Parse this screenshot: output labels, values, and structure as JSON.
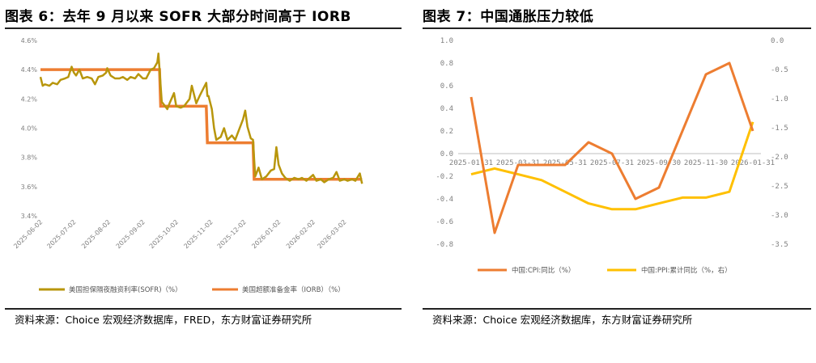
{
  "charts": [
    {
      "figure_title": "图表 6：去年 9 月以来 SOFR 大部分时间高于 IORB",
      "source_note": "资料来源：Choice 宏观经济数据库，FRED，东方财富证券研究所",
      "colors": {
        "sofr": "#B8960C",
        "iorb": "#ED7D31"
      }
    },
    {
      "figure_title": "图表 7：中国通胀压力较低",
      "source_note": "资料来源：Choice 宏观经济数据库，东方财富证券研究所",
      "colors": {
        "cpi": "#ED7D31",
        "ppi": "#FFC000"
      }
    }
  ],
  "chart_data": [
    {
      "type": "line",
      "title": "图表 6：去年 9 月以来 SOFR 大部分时间高于 IORB",
      "ylim": [
        3.4,
        4.6
      ],
      "ytick_labels": [
        "4.6%",
        "4.4%",
        "4.2%",
        "4.0%",
        "3.8%",
        "3.6%",
        "3.4%"
      ],
      "xtick_labels": [
        "2025-06-02",
        "2025-07-02",
        "2025-08-02",
        "2025-09-02",
        "2025-10-02",
        "2025-11-02",
        "2025-12-02",
        "2026-01-02",
        "2026-02-02",
        "2026-03-02"
      ],
      "grid": false,
      "legend": "bottom",
      "series": [
        {
          "name": "美国担保隔夜融资利率(SOFR)（%）",
          "points": [
            [
              "2025-06-02",
              4.35
            ],
            [
              "2025-06-04",
              4.29
            ],
            [
              "2025-06-06",
              4.3
            ],
            [
              "2025-06-10",
              4.29
            ],
            [
              "2025-06-13",
              4.31
            ],
            [
              "2025-06-17",
              4.3
            ],
            [
              "2025-06-20",
              4.33
            ],
            [
              "2025-06-24",
              4.34
            ],
            [
              "2025-06-27",
              4.35
            ],
            [
              "2025-06-30",
              4.42
            ],
            [
              "2025-07-02",
              4.38
            ],
            [
              "2025-07-04",
              4.36
            ],
            [
              "2025-07-07",
              4.4
            ],
            [
              "2025-07-10",
              4.34
            ],
            [
              "2025-07-14",
              4.35
            ],
            [
              "2025-07-18",
              4.34
            ],
            [
              "2025-07-21",
              4.3
            ],
            [
              "2025-07-24",
              4.35
            ],
            [
              "2025-07-28",
              4.36
            ],
            [
              "2025-07-31",
              4.38
            ],
            [
              "2025-08-01",
              4.41
            ],
            [
              "2025-08-04",
              4.36
            ],
            [
              "2025-08-08",
              4.34
            ],
            [
              "2025-08-12",
              4.34
            ],
            [
              "2025-08-15",
              4.35
            ],
            [
              "2025-08-19",
              4.33
            ],
            [
              "2025-08-22",
              4.35
            ],
            [
              "2025-08-26",
              4.34
            ],
            [
              "2025-08-29",
              4.37
            ],
            [
              "2025-09-02",
              4.34
            ],
            [
              "2025-09-05",
              4.34
            ],
            [
              "2025-09-09",
              4.4
            ],
            [
              "2025-09-12",
              4.41
            ],
            [
              "2025-09-15",
              4.45
            ],
            [
              "2025-09-16",
              4.51
            ],
            [
              "2025-09-17",
              4.4
            ],
            [
              "2025-09-19",
              4.18
            ],
            [
              "2025-09-22",
              4.15
            ],
            [
              "2025-09-24",
              4.13
            ],
            [
              "2025-09-26",
              4.17
            ],
            [
              "2025-09-30",
              4.24
            ],
            [
              "2025-10-02",
              4.15
            ],
            [
              "2025-10-06",
              4.14
            ],
            [
              "2025-10-09",
              4.15
            ],
            [
              "2025-10-14",
              4.2
            ],
            [
              "2025-10-16",
              4.29
            ],
            [
              "2025-10-20",
              4.17
            ],
            [
              "2025-10-23",
              4.22
            ],
            [
              "2025-10-27",
              4.28
            ],
            [
              "2025-10-29",
              4.31
            ],
            [
              "2025-10-30",
              4.22
            ],
            [
              "2025-10-31",
              4.22
            ],
            [
              "2025-11-03",
              4.13
            ],
            [
              "2025-11-05",
              4.0
            ],
            [
              "2025-11-07",
              3.92
            ],
            [
              "2025-11-11",
              3.94
            ],
            [
              "2025-11-14",
              4.0
            ],
            [
              "2025-11-17",
              3.92
            ],
            [
              "2025-11-21",
              3.95
            ],
            [
              "2025-11-24",
              3.92
            ],
            [
              "2025-11-27",
              3.98
            ],
            [
              "2025-12-01",
              4.06
            ],
            [
              "2025-12-03",
              4.12
            ],
            [
              "2025-12-05",
              4.01
            ],
            [
              "2025-12-08",
              3.93
            ],
            [
              "2025-12-10",
              3.92
            ],
            [
              "2025-12-11",
              3.79
            ],
            [
              "2025-12-12",
              3.67
            ],
            [
              "2025-12-15",
              3.73
            ],
            [
              "2025-12-18",
              3.65
            ],
            [
              "2025-12-22",
              3.67
            ],
            [
              "2025-12-26",
              3.71
            ],
            [
              "2025-12-29",
              3.72
            ],
            [
              "2025-12-31",
              3.87
            ],
            [
              "2026-01-02",
              3.75
            ],
            [
              "2026-01-05",
              3.69
            ],
            [
              "2026-01-08",
              3.66
            ],
            [
              "2026-01-12",
              3.64
            ],
            [
              "2026-01-16",
              3.66
            ],
            [
              "2026-01-20",
              3.65
            ],
            [
              "2026-01-23",
              3.66
            ],
            [
              "2026-01-27",
              3.64
            ],
            [
              "2026-01-30",
              3.66
            ],
            [
              "2026-02-02",
              3.68
            ],
            [
              "2026-02-05",
              3.64
            ],
            [
              "2026-02-09",
              3.65
            ],
            [
              "2026-02-12",
              3.63
            ],
            [
              "2026-02-16",
              3.65
            ],
            [
              "2026-02-20",
              3.66
            ],
            [
              "2026-02-23",
              3.7
            ],
            [
              "2026-02-26",
              3.64
            ],
            [
              "2026-03-02",
              3.65
            ],
            [
              "2026-03-05",
              3.64
            ],
            [
              "2026-03-09",
              3.65
            ],
            [
              "2026-03-12",
              3.64
            ],
            [
              "2026-03-16",
              3.69
            ],
            [
              "2026-03-18",
              3.62
            ]
          ]
        },
        {
          "name": "美国超额准备金率（IORB）（%）",
          "points": [
            [
              "2025-06-02",
              4.4
            ],
            [
              "2025-09-17",
              4.4
            ],
            [
              "2025-09-18",
              4.15
            ],
            [
              "2025-10-29",
              4.15
            ],
            [
              "2025-10-30",
              3.9
            ],
            [
              "2025-12-10",
              3.9
            ],
            [
              "2025-12-11",
              3.65
            ],
            [
              "2026-03-18",
              3.65
            ]
          ]
        }
      ]
    },
    {
      "type": "line",
      "title": "图表 7：中国通胀压力较低",
      "ylim": [
        -0.8,
        1.0
      ],
      "y2lim": [
        -3.5,
        0.0
      ],
      "ytick_labels": [
        "1.0",
        "0.8",
        "0.6",
        "0.4",
        "0.2",
        "0.0",
        "-0.2",
        "-0.4",
        "-0.6",
        "-0.8"
      ],
      "y2tick_labels": [
        "0.0",
        "-0.5",
        "-1.0",
        "-1.5",
        "-2.0",
        "-2.5",
        "-3.0",
        "-3.5"
      ],
      "xtick_labels": [
        "2025-01-31",
        "2025-03-31",
        "2025-05-31",
        "2025-07-31",
        "2025-09-30",
        "2025-11-30",
        "2026-01-31"
      ],
      "grid": false,
      "legend": "bottom",
      "categories": [
        "2025-01",
        "2025-02",
        "2025-03",
        "2025-04",
        "2025-05",
        "2025-06",
        "2025-07",
        "2025-08",
        "2025-09",
        "2025-10",
        "2025-11",
        "2025-12",
        "2026-01"
      ],
      "series": [
        {
          "name": "中国:CPI:同比（%）",
          "axis": "left",
          "values": [
            0.5,
            -0.7,
            -0.1,
            -0.1,
            -0.1,
            0.1,
            0.0,
            -0.4,
            -0.3,
            0.2,
            0.7,
            0.8,
            0.2
          ]
        },
        {
          "name": "中国:PPI:累计同比（%，右）",
          "axis": "right",
          "values": [
            -2.3,
            -2.2,
            -2.3,
            -2.4,
            -2.6,
            -2.8,
            -2.9,
            -2.9,
            -2.8,
            -2.7,
            -2.7,
            -2.6,
            -1.4
          ]
        }
      ]
    }
  ]
}
